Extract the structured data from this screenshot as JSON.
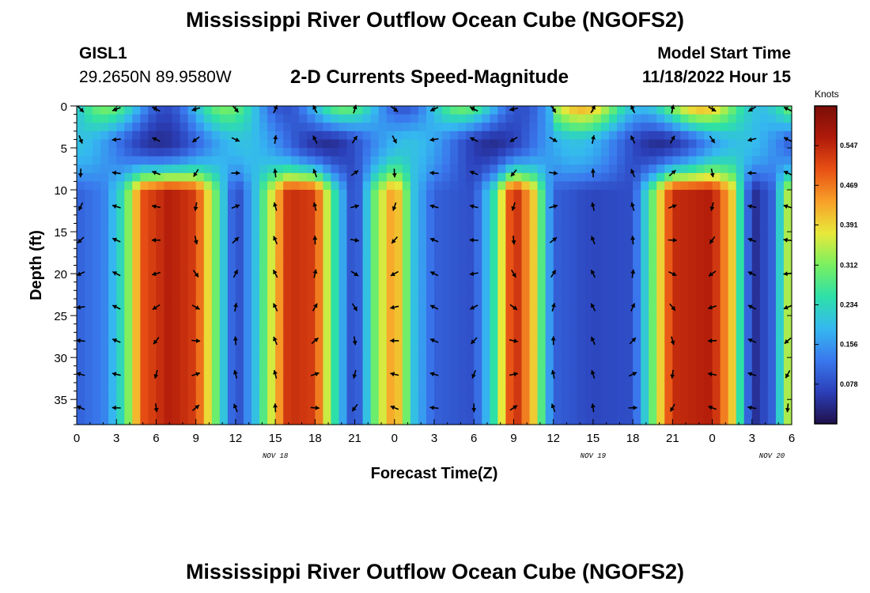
{
  "page": {
    "title": "Mississippi River Outflow Ocean Cube (NGOFS2)",
    "title_repeat": "Mississippi River Outflow Ocean Cube (NGOFS2)",
    "station_id": "GISL1",
    "coordinates": "29.2650N  89.9580W",
    "subtitle": "2-D Currents Speed-Magnitude",
    "model_start_label": "Model Start Time",
    "model_start_value": "11/18/2022 Hour 15"
  },
  "chart_data": {
    "type": "heatmap",
    "title": "2-D Currents Speed-Magnitude",
    "xlabel": "Forecast Time(Z)",
    "ylabel": "Depth (ft)",
    "y_inverted": true,
    "xlim": [
      0,
      54
    ],
    "ylim": [
      0,
      38
    ],
    "x_tick_labels": [
      "0",
      "3",
      "6",
      "9",
      "12",
      "15",
      "18",
      "21",
      "0",
      "3",
      "6",
      "9",
      "12",
      "15",
      "18",
      "21",
      "0",
      "3",
      "6"
    ],
    "x_date_labels": [
      {
        "hour_index": 15,
        "label": "NOV 18"
      },
      {
        "hour_index": 39,
        "label": "NOV 19"
      },
      {
        "hour_index": 54,
        "label": "NOV 20"
      }
    ],
    "y_ticks": [
      0,
      5,
      10,
      15,
      20,
      25,
      30,
      35
    ],
    "colorbar": {
      "units": "Knots",
      "range": [
        0,
        0.625
      ],
      "tick_labels": [
        "0.547",
        "0.469",
        "0.391",
        "0.312",
        "0.234",
        "0.156",
        "0.078"
      ],
      "tick_values": [
        0.547,
        0.469,
        0.391,
        0.312,
        0.234,
        0.156,
        0.078
      ]
    },
    "arrow_depths_ft": [
      0,
      4,
      8,
      12,
      16,
      20,
      24,
      28,
      32,
      36
    ],
    "arrow_hours": [
      0,
      3,
      6,
      9,
      12,
      15,
      18,
      21,
      24,
      27,
      30,
      33,
      36,
      39,
      42,
      45,
      48,
      51,
      54
    ],
    "bottom_profile_knots": [
      {
        "hour": 0,
        "speed": 0.1
      },
      {
        "hour": 2,
        "speed": 0.13
      },
      {
        "hour": 3.5,
        "speed": 0.25
      },
      {
        "hour": 5,
        "speed": 0.5
      },
      {
        "hour": 7,
        "speed": 0.56
      },
      {
        "hour": 9,
        "speed": 0.52
      },
      {
        "hour": 10.5,
        "speed": 0.3
      },
      {
        "hour": 12,
        "speed": 0.06
      },
      {
        "hour": 13.5,
        "speed": 0.2
      },
      {
        "hour": 16,
        "speed": 0.54
      },
      {
        "hour": 18,
        "speed": 0.52
      },
      {
        "hour": 19.5,
        "speed": 0.25
      },
      {
        "hour": 21,
        "speed": 0.05
      },
      {
        "hour": 22.5,
        "speed": 0.3
      },
      {
        "hour": 24,
        "speed": 0.46
      },
      {
        "hour": 25.5,
        "speed": 0.2
      },
      {
        "hour": 27,
        "speed": 0.1
      },
      {
        "hour": 30,
        "speed": 0.08
      },
      {
        "hour": 31.5,
        "speed": 0.25
      },
      {
        "hour": 33,
        "speed": 0.56
      },
      {
        "hour": 34.5,
        "speed": 0.4
      },
      {
        "hour": 36,
        "speed": 0.1
      },
      {
        "hour": 39,
        "speed": 0.07
      },
      {
        "hour": 42,
        "speed": 0.08
      },
      {
        "hour": 43.5,
        "speed": 0.3
      },
      {
        "hour": 45,
        "speed": 0.54
      },
      {
        "hour": 48,
        "speed": 0.56
      },
      {
        "hour": 49.5,
        "speed": 0.4
      },
      {
        "hour": 51,
        "speed": 0.03
      },
      {
        "hour": 52.5,
        "speed": 0.1
      },
      {
        "hour": 54,
        "speed": 0.4
      }
    ]
  },
  "colors": {
    "colormap": [
      "#20104a",
      "#2b3fb8",
      "#3a78ee",
      "#35b8f0",
      "#2de0a8",
      "#7af060",
      "#e8e83a",
      "#f8a028",
      "#e85014",
      "#b01a0a",
      "#7a0e08"
    ]
  }
}
